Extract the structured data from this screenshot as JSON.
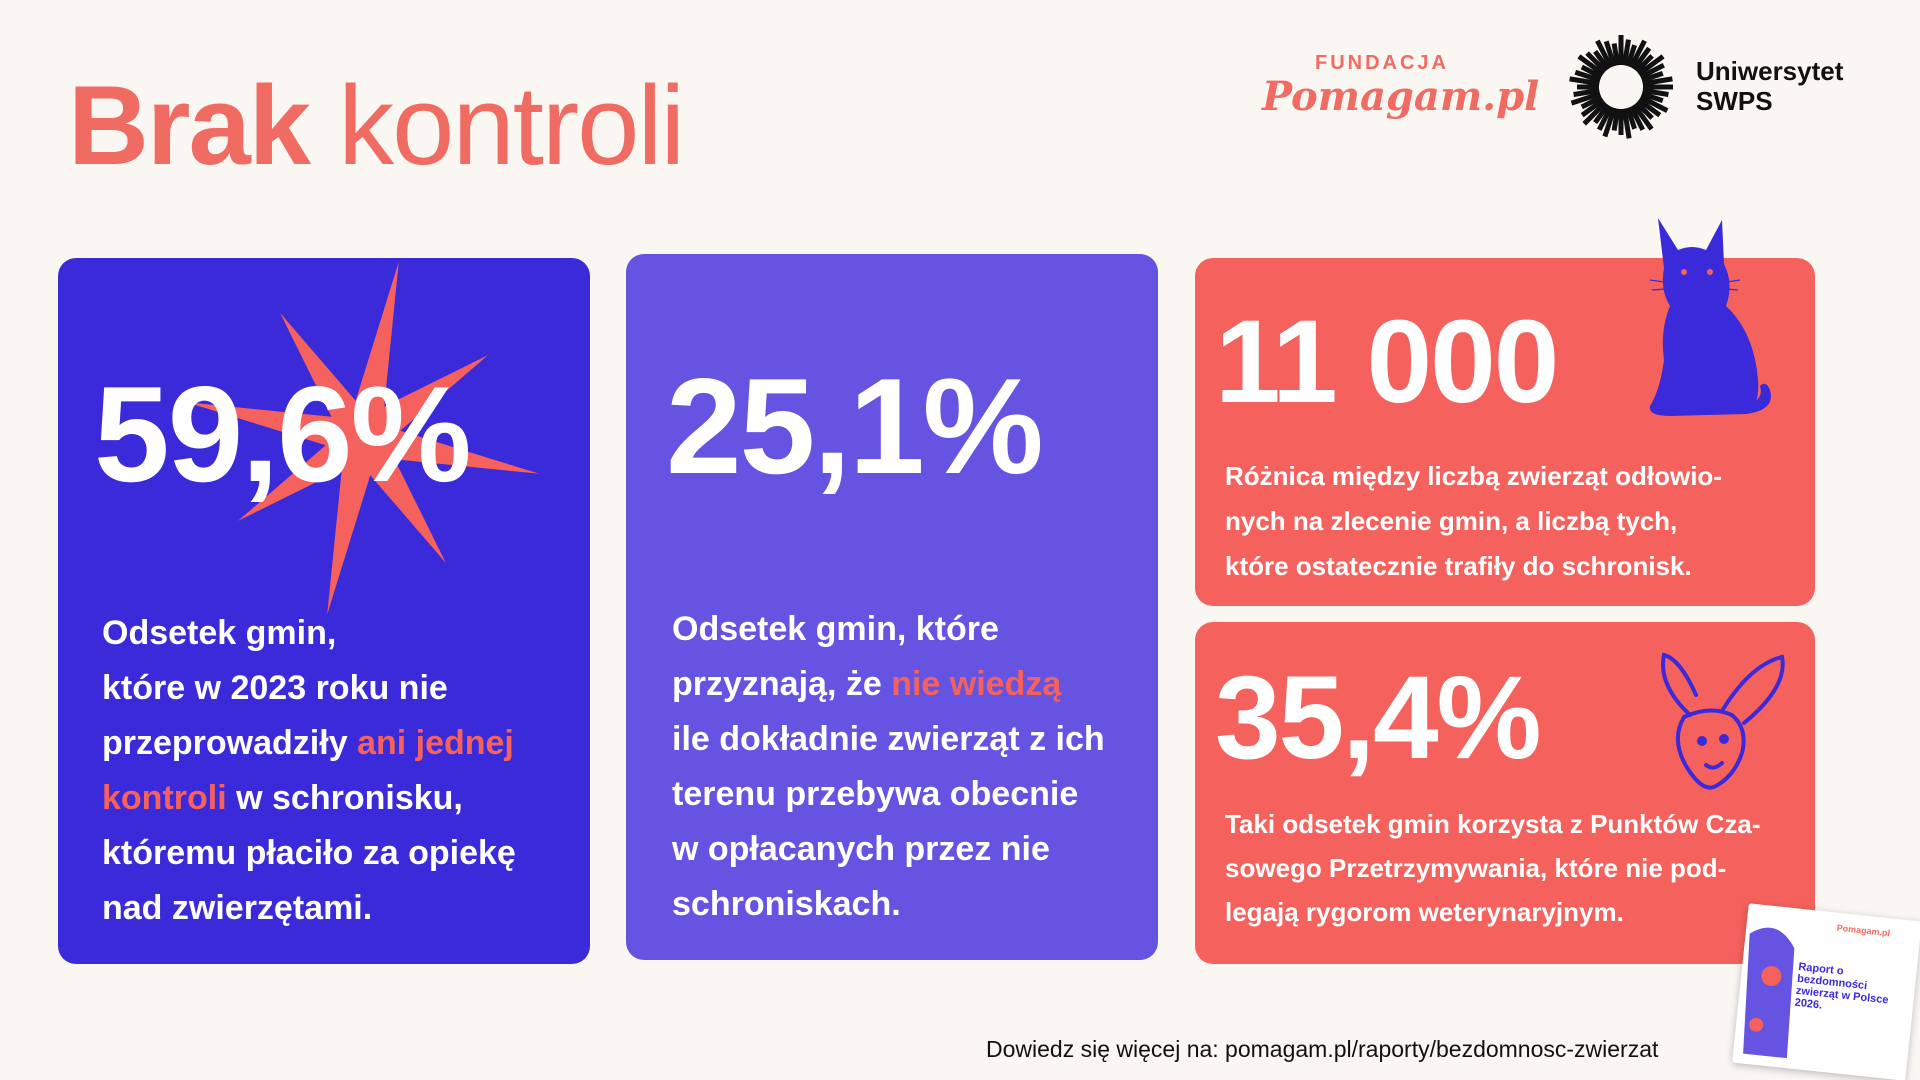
{
  "header": {
    "title_bold": "Brak",
    "title_regular": "kontroli"
  },
  "logos": {
    "fundacja_top": "FUNDACJA",
    "fundacja_bottom": "Pomagam.pl",
    "university_line1": "Uniwersytet",
    "university_line2": "SWPS"
  },
  "cards": [
    {
      "value": "59,6%",
      "desc_1": "Odsetek gmin,",
      "desc_2": "które w 2023 roku nie",
      "desc_3": "przeprowadziły",
      "desc_hl_1": "ani jednej",
      "desc_hl_2": "kontroli",
      "desc_4": "w schronisku,",
      "desc_5": "któremu płaciło za opiekę",
      "desc_6": "nad zwierzętami."
    },
    {
      "value": "25,1%",
      "desc_1": "Odsetek gmin, które",
      "desc_2": "przyznają, że",
      "desc_hl": "nie wiedzą",
      "desc_3": "ile dokładnie zwierząt z ich",
      "desc_4": "terenu przebywa obecnie",
      "desc_5": "w opłacanych przez nie",
      "desc_6": "schroniskach."
    },
    {
      "value": "11 000",
      "desc_1": "Różnica między liczbą zwierząt odłowio-",
      "desc_2": "nych na zlecenie gmin, a liczbą tych,",
      "desc_3": "które ostatecznie trafiły do schronisk."
    },
    {
      "value": "35,4%",
      "desc_1": "Taki odsetek gmin korzysta z Punktów Cza-",
      "desc_2": "sowego Przetrzymywania, które nie pod-",
      "desc_3": "legają rygorom weterynaryjnym."
    }
  ],
  "footer": {
    "text": "Dowiedz się więcej na: pomagam.pl/raporty/bezdomnosc-zwierzat"
  },
  "report": {
    "title": "Raport o bezdomności zwierząt w Polsce 2026."
  },
  "colors": {
    "background": "#faf7f3",
    "coral": "#f5625d",
    "indigo": "#3a2ad9",
    "violet": "#6553e1"
  },
  "icons": [
    "star-burst",
    "cat-illustration",
    "rabbit-illustration",
    "swps-logo-mark"
  ]
}
